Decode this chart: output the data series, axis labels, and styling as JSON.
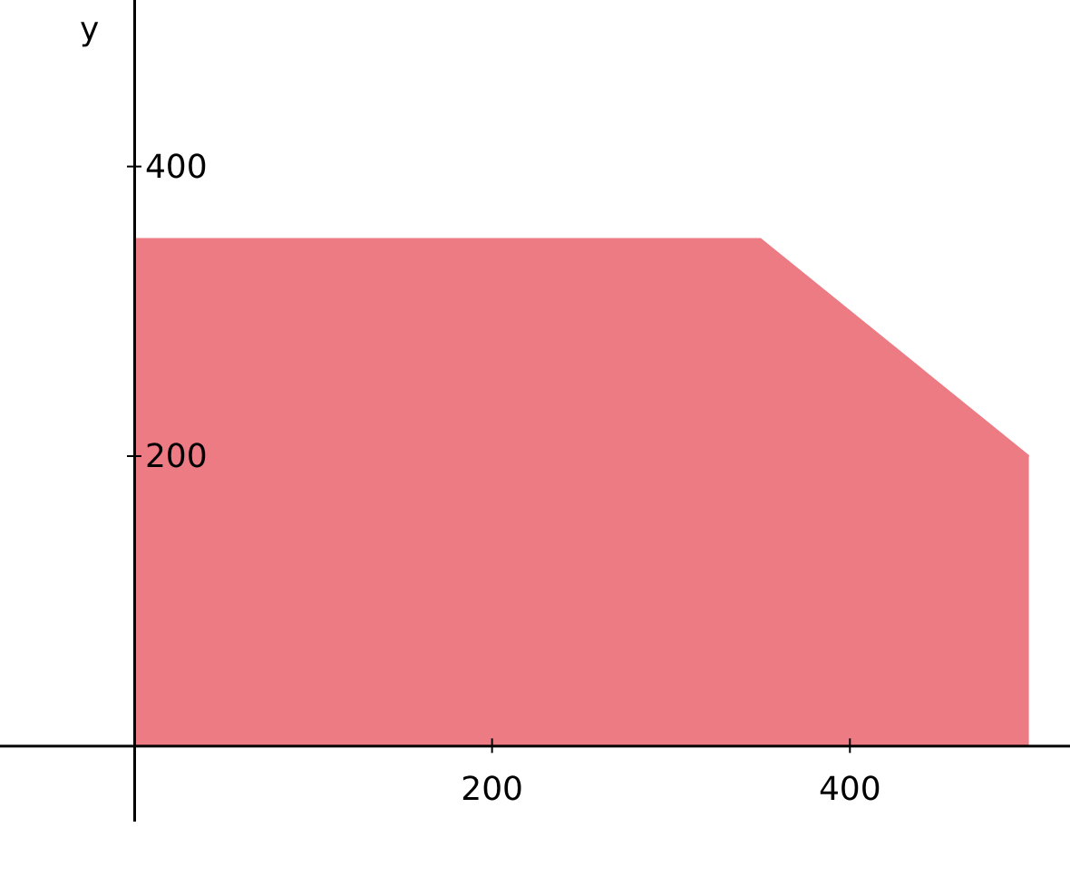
{
  "chart_data": {
    "type": "area",
    "ylabel": "y",
    "x": [
      0,
      350,
      500
    ],
    "series": [
      {
        "color": "#ec7b84",
        "values": [
          350,
          350,
          200
        ]
      }
    ],
    "xlim": [
      -75,
      523
    ],
    "ylim": [
      -90,
      515
    ],
    "xticks": [
      200,
      400
    ],
    "yticks": [
      200,
      400
    ]
  }
}
